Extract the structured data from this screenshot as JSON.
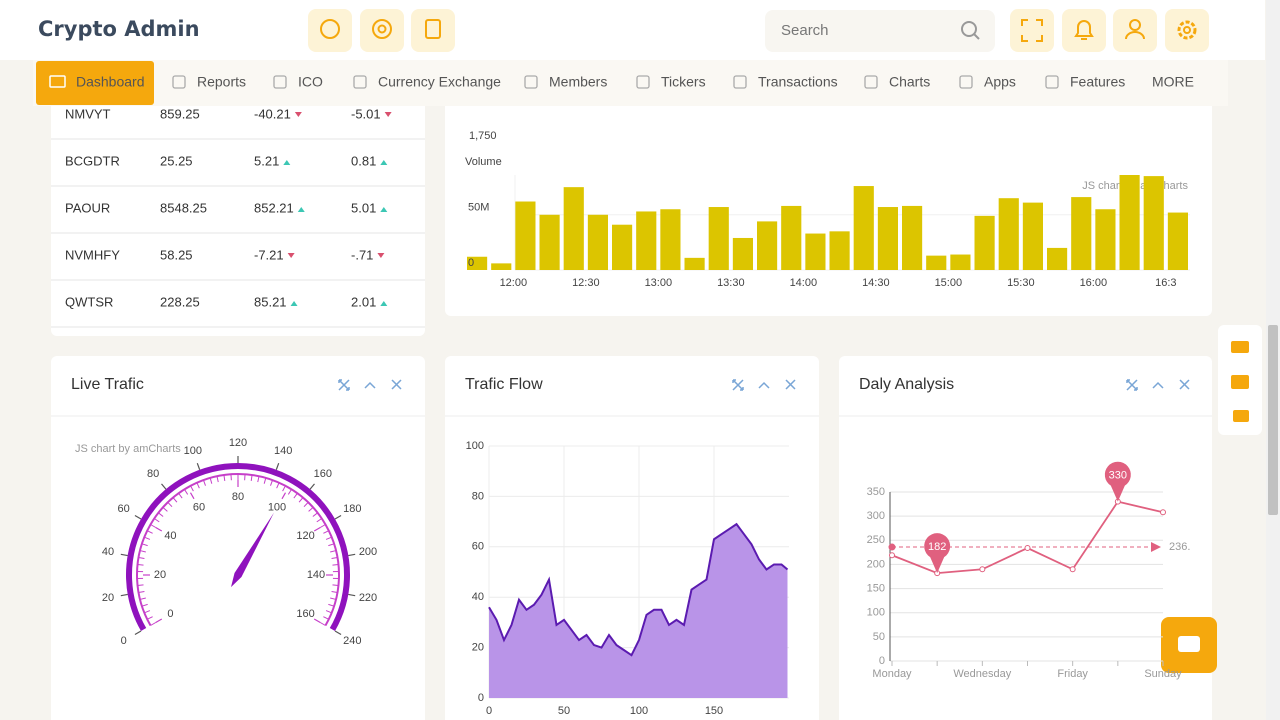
{
  "header": {
    "brand": "Crypto Admin",
    "search_placeholder": "Search"
  },
  "nav": {
    "items": [
      "Dashboard",
      "Reports",
      "ICO",
      "Currency Exchange",
      "Members",
      "Tickers",
      "Transactions",
      "Charts",
      "Apps",
      "Features",
      "MORE"
    ],
    "active": 0
  },
  "tickers": {
    "rows": [
      [
        "NMVYT",
        "859.25",
        "-40.21",
        "-5.01"
      ],
      [
        "BCGDTR",
        "25.25",
        "5.21",
        "0.81"
      ],
      [
        "PAOUR",
        "8548.25",
        "852.21",
        "5.01"
      ],
      [
        "NVMHFY",
        "58.25",
        "-7.21",
        "-.71"
      ],
      [
        "QWTSR",
        "228.25",
        "85.21",
        "2.01"
      ]
    ]
  },
  "price_chart": {
    "yticks": [
      {
        "value": 1750,
        "label": "1,750"
      }
    ]
  },
  "volume_chart": {
    "type": "bar",
    "title": "Volume",
    "credit": "JS chart by amCharts",
    "categories": [
      null,
      null,
      "12:00",
      null,
      null,
      "12:30",
      null,
      null,
      "13:00",
      null,
      null,
      "13:30",
      null,
      null,
      "14:00",
      null,
      null,
      "14:30",
      null,
      null,
      "15:00",
      null,
      null,
      "15:30",
      null,
      null,
      "16:00",
      null,
      null,
      "16:3"
    ],
    "values": [
      12000000,
      6000000,
      62000000,
      50000000,
      75000000,
      50000000,
      41000000,
      53000000,
      55000000,
      11000000,
      57000000,
      29000000,
      44000000,
      58000000,
      33000000,
      35000000,
      76000000,
      57000000,
      58000000,
      13000000,
      14000000,
      49000000,
      65000000,
      61000000,
      20000000,
      66000000,
      55000000,
      86000000,
      85000000,
      52000000
    ],
    "color": "#dcc500",
    "ylim": [
      0,
      86000000
    ],
    "yticks": [
      0,
      {
        "value": 50000000,
        "label": "50M"
      }
    ]
  },
  "gauge": {
    "type": "gauge",
    "title": "Live Trafic",
    "credit": "JS chart by amCharts",
    "axes": [
      {
        "lim": [
          0,
          240
        ],
        "ticks": [
          0,
          20,
          40,
          60,
          80,
          100,
          120,
          140,
          160,
          180,
          200,
          220,
          240
        ]
      },
      {
        "lim": [
          0,
          160
        ],
        "ticks": [
          0,
          20,
          40,
          60,
          80,
          100,
          120,
          140,
          160
        ]
      }
    ],
    "value": 100,
    "axis": 1,
    "color": "#8f12bd"
  },
  "traffic_flow": {
    "type": "area",
    "title": "Trafic Flow",
    "x": [
      0,
      5,
      10,
      15,
      20,
      25,
      30,
      35,
      40,
      45,
      50,
      55,
      60,
      65,
      70,
      75,
      80,
      85,
      90,
      95,
      100,
      105,
      110,
      115,
      120,
      125,
      130,
      135,
      140,
      145,
      150,
      155,
      160,
      165,
      170,
      175,
      180,
      185,
      190,
      195,
      199
    ],
    "values": [
      36,
      31,
      23,
      29,
      39,
      35,
      37,
      41,
      47,
      29,
      31,
      27,
      23,
      25,
      21,
      20,
      25,
      21,
      19,
      17,
      23,
      33,
      35,
      35,
      29,
      31,
      29,
      43,
      45,
      47,
      63,
      65,
      67,
      69,
      65,
      61,
      55,
      51,
      53,
      53,
      51
    ],
    "xlim": [
      0,
      200
    ],
    "ylim": [
      0,
      100
    ],
    "xticks": [
      0,
      50,
      100,
      150
    ],
    "yticks": [
      0,
      20,
      40,
      60,
      80,
      100
    ],
    "color": "#b994e8",
    "line_color": "#5b1bb0",
    "grid": true
  },
  "daily_analysis": {
    "type": "line",
    "title": "Daly Analysis",
    "categories": [
      "Monday",
      null,
      "Wednesday",
      null,
      "Friday",
      null,
      "Sunday"
    ],
    "values": [
      219,
      182,
      190,
      234,
      190,
      330,
      308
    ],
    "ylim": [
      0,
      350
    ],
    "yticks": [
      0,
      50,
      100,
      150,
      200,
      250,
      300,
      350
    ],
    "color": "#e0607f",
    "average": {
      "value": 236,
      "label": "236."
    },
    "bullets": "min-max"
  }
}
